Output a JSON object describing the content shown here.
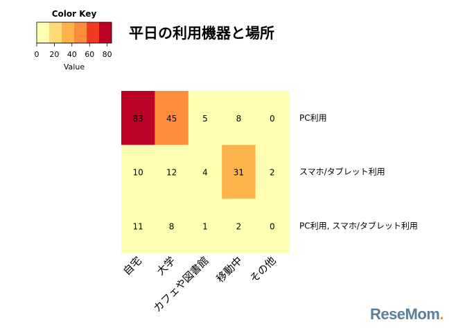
{
  "chart_data": {
    "type": "heatmap",
    "title": "平日の利用機器と場所",
    "columns": [
      "自宅",
      "大学",
      "カフェや図書館",
      "移動中",
      "その他"
    ],
    "rows": [
      "PC利用",
      "スマホ/タブレット利用",
      "PC利用, スマホ/タブレット利用"
    ],
    "values": [
      [
        83,
        45,
        5,
        8,
        0
      ],
      [
        10,
        12,
        4,
        31,
        2
      ],
      [
        11,
        8,
        1,
        2,
        0
      ]
    ],
    "color_key": {
      "title": "Color Key",
      "xlabel": "Value",
      "ticks": [
        0,
        20,
        40,
        60,
        80
      ],
      "range": [
        0,
        85
      ],
      "colors": [
        "#ffffb2",
        "#fed976",
        "#feb24c",
        "#fd8d3c",
        "#f03b20",
        "#bd0026"
      ]
    }
  },
  "watermark": {
    "part1": "ReseMom",
    "part2": "."
  }
}
